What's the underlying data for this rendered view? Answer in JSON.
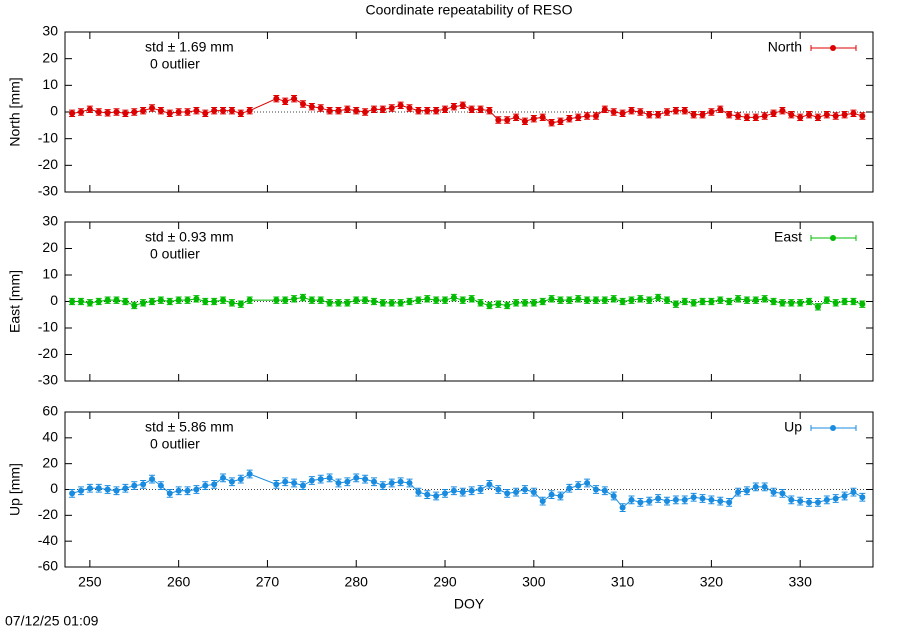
{
  "title": "Coordinate repeatability of RESO",
  "footer": "07/12/25 01:09",
  "chart_data": [
    {
      "type": "line",
      "ylabel": "North [mm]",
      "annotations": [
        "std ± 1.69 mm",
        "0 outlier"
      ],
      "x": [
        248,
        249,
        250,
        251,
        252,
        253,
        254,
        255,
        256,
        257,
        258,
        259,
        260,
        261,
        262,
        263,
        264,
        265,
        266,
        267,
        268,
        271,
        272,
        273,
        274,
        275,
        276,
        277,
        278,
        279,
        280,
        281,
        282,
        283,
        284,
        285,
        286,
        287,
        288,
        289,
        290,
        291,
        292,
        293,
        294,
        295,
        296,
        297,
        298,
        299,
        300,
        301,
        302,
        303,
        304,
        305,
        306,
        307,
        308,
        309,
        310,
        311,
        312,
        313,
        314,
        315,
        316,
        317,
        318,
        319,
        320,
        321,
        322,
        323,
        324,
        325,
        326,
        327,
        328,
        329,
        330,
        331,
        332,
        333,
        334,
        335,
        336,
        337
      ],
      "xlim": [
        247.2,
        338.2
      ],
      "ylim": [
        -30,
        30
      ],
      "yticks": [
        -30,
        -20,
        -10,
        0,
        10,
        20,
        30
      ],
      "series": [
        {
          "name": "North",
          "color": "#dd0000",
          "error": 1.2,
          "values": [
            -0.5,
            0,
            1,
            0,
            -0.3,
            0,
            -0.5,
            0,
            0.5,
            1.5,
            0.5,
            -0.5,
            0,
            0,
            0.5,
            -0.5,
            0.5,
            0.5,
            0.5,
            -0.5,
            0.5,
            5,
            4,
            5,
            3,
            2,
            1.5,
            0.5,
            0.5,
            1,
            0.5,
            0,
            1,
            1,
            1.5,
            2.5,
            1.5,
            0.5,
            0.5,
            0.5,
            1,
            2,
            2.5,
            1,
            1,
            0.5,
            -3,
            -3,
            -2,
            -3.5,
            -2.5,
            -2,
            -4,
            -3.5,
            -2.5,
            -2,
            -1.5,
            -1.5,
            1,
            0,
            -0.5,
            0.5,
            0,
            -1,
            -1,
            0,
            0.5,
            0.5,
            -1,
            -1,
            0,
            1,
            -1,
            -1.5,
            -2,
            -2,
            -1.5,
            -0.5,
            0.5,
            -1,
            -2,
            -1,
            -2,
            -1,
            -1.5,
            -1,
            -0.5,
            -1.5
          ]
        }
      ]
    },
    {
      "type": "line",
      "ylabel": "East [mm]",
      "annotations": [
        "std ± 0.93 mm",
        "0 outlier"
      ],
      "x": [
        248,
        249,
        250,
        251,
        252,
        253,
        254,
        255,
        256,
        257,
        258,
        259,
        260,
        261,
        262,
        263,
        264,
        265,
        266,
        267,
        268,
        271,
        272,
        273,
        274,
        275,
        276,
        277,
        278,
        279,
        280,
        281,
        282,
        283,
        284,
        285,
        286,
        287,
        288,
        289,
        290,
        291,
        292,
        293,
        294,
        295,
        296,
        297,
        298,
        299,
        300,
        301,
        302,
        303,
        304,
        305,
        306,
        307,
        308,
        309,
        310,
        311,
        312,
        313,
        314,
        315,
        316,
        317,
        318,
        319,
        320,
        321,
        322,
        323,
        324,
        325,
        326,
        327,
        328,
        329,
        330,
        331,
        332,
        333,
        334,
        335,
        336,
        337
      ],
      "xlim": [
        247.2,
        338.2
      ],
      "ylim": [
        -30,
        30
      ],
      "yticks": [
        -30,
        -20,
        -10,
        0,
        10,
        20,
        30
      ],
      "series": [
        {
          "name": "East",
          "color": "#00bb00",
          "error": 1.2,
          "values": [
            0,
            0,
            -0.5,
            0,
            0.5,
            0.5,
            0,
            -1.5,
            -0.5,
            0,
            0.5,
            0,
            0.5,
            0.5,
            1,
            0,
            0,
            0.5,
            -0.5,
            -1,
            0.5,
            0.5,
            0.5,
            1,
            1.5,
            0.5,
            0.5,
            -0.5,
            -0.5,
            -0.5,
            0.5,
            0.5,
            0,
            -0.5,
            -0.5,
            -0.5,
            0,
            0.5,
            1,
            0.5,
            0.5,
            1.5,
            0.5,
            1,
            -0.5,
            -1.5,
            -1,
            -1.5,
            -0.5,
            -0.5,
            -0.5,
            0,
            1,
            0.5,
            0.5,
            1,
            0.5,
            0.5,
            0.5,
            1,
            0,
            0.5,
            1,
            0.5,
            1.5,
            0.5,
            -1,
            0,
            -0.5,
            0,
            0,
            0.5,
            0,
            1,
            0.5,
            0.5,
            1,
            0,
            -0.5,
            -0.5,
            -0.5,
            0,
            -2,
            0.5,
            -0.5,
            0,
            0,
            -1
          ]
        }
      ]
    },
    {
      "type": "line",
      "ylabel": "Up [mm]",
      "xlabel": "DOY",
      "annotations": [
        "std ± 5.86 mm",
        "0 outlier"
      ],
      "x": [
        248,
        249,
        250,
        251,
        252,
        253,
        254,
        255,
        256,
        257,
        258,
        259,
        260,
        261,
        262,
        263,
        264,
        265,
        266,
        267,
        268,
        271,
        272,
        273,
        274,
        275,
        276,
        277,
        278,
        279,
        280,
        281,
        282,
        283,
        284,
        285,
        286,
        287,
        288,
        289,
        290,
        291,
        292,
        293,
        294,
        295,
        296,
        297,
        298,
        299,
        300,
        301,
        302,
        303,
        304,
        305,
        306,
        307,
        308,
        309,
        310,
        311,
        312,
        313,
        314,
        315,
        316,
        317,
        318,
        319,
        320,
        321,
        322,
        323,
        324,
        325,
        326,
        327,
        328,
        329,
        330,
        331,
        332,
        333,
        334,
        335,
        336,
        337
      ],
      "xlim": [
        247.2,
        338.2
      ],
      "xticks": [
        250,
        260,
        270,
        280,
        290,
        300,
        310,
        320,
        330
      ],
      "ylim": [
        -60,
        60
      ],
      "yticks": [
        -60,
        -40,
        -20,
        0,
        20,
        40,
        60
      ],
      "series": [
        {
          "name": "Up",
          "color": "#1a8ce0",
          "error": 3,
          "values": [
            -3,
            -1,
            1,
            1,
            0,
            -1,
            1,
            3,
            4,
            8,
            3,
            -3,
            -1,
            -1,
            0,
            3,
            4,
            9,
            6,
            8,
            12,
            4,
            6,
            5,
            3,
            7,
            8,
            9,
            5,
            6,
            9,
            8,
            6,
            3,
            5,
            6,
            5,
            -2,
            -4,
            -5,
            -3,
            -1,
            -2,
            -1,
            0,
            4,
            0,
            -3,
            -2,
            0,
            -2,
            -9,
            -4,
            -5,
            1,
            3,
            5,
            0,
            -1,
            -5,
            -14,
            -8,
            -10,
            -9,
            -7,
            -9,
            -8,
            -8,
            -6,
            -7,
            -8,
            -9,
            -10,
            -2,
            -1,
            2,
            2,
            -2,
            -3,
            -8,
            -9,
            -10,
            -10,
            -8,
            -7,
            -5,
            -2,
            -6
          ]
        }
      ]
    }
  ]
}
